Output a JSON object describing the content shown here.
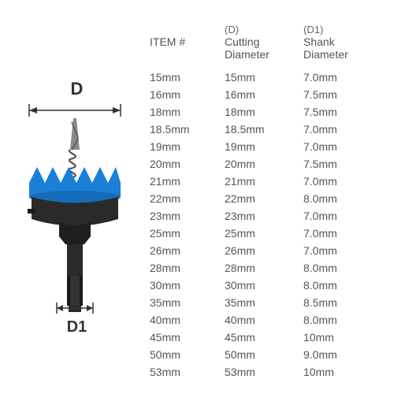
{
  "diagram": {
    "label_d": "D",
    "label_d1": "D1",
    "body_color": "#2a2a2a",
    "teeth_color": "#1b7fd6",
    "dim_line_color": "#333333"
  },
  "table": {
    "headers": {
      "item_label": "ITEM #",
      "cutting_super": "(D)",
      "cutting_label": "Cutting",
      "cutting_sub": "Diameter",
      "shank_super": "(D1)",
      "shank_label": "Shank",
      "shank_sub": "Diameter"
    },
    "columns": [
      "item",
      "cutting",
      "shank"
    ],
    "rows": [
      {
        "item": "15mm",
        "cutting": "15mm",
        "shank": "7.0mm"
      },
      {
        "item": "16mm",
        "cutting": "16mm",
        "shank": "7.5mm"
      },
      {
        "item": "18mm",
        "cutting": "18mm",
        "shank": "7.5mm"
      },
      {
        "item": "18.5mm",
        "cutting": "18.5mm",
        "shank": "7.0mm"
      },
      {
        "item": "19mm",
        "cutting": "19mm",
        "shank": "7.0mm"
      },
      {
        "item": "20mm",
        "cutting": "20mm",
        "shank": "7.5mm"
      },
      {
        "item": "21mm",
        "cutting": "21mm",
        "shank": "7.0mm"
      },
      {
        "item": "22mm",
        "cutting": "22mm",
        "shank": "8.0mm"
      },
      {
        "item": "23mm",
        "cutting": "23mm",
        "shank": "7.0mm"
      },
      {
        "item": "25mm",
        "cutting": "25mm",
        "shank": "7.0mm"
      },
      {
        "item": "26mm",
        "cutting": "26mm",
        "shank": "7.0mm"
      },
      {
        "item": "28mm",
        "cutting": "28mm",
        "shank": "8.0mm"
      },
      {
        "item": "30mm",
        "cutting": "30mm",
        "shank": "8.0mm"
      },
      {
        "item": "35mm",
        "cutting": "35mm",
        "shank": "8.5mm"
      },
      {
        "item": "40mm",
        "cutting": "40mm",
        "shank": "8.0mm"
      },
      {
        "item": "45mm",
        "cutting": "45mm",
        "shank": "10mm"
      },
      {
        "item": "50mm",
        "cutting": "50mm",
        "shank": "9.0mm"
      },
      {
        "item": "53mm",
        "cutting": "53mm",
        "shank": "10mm"
      }
    ],
    "text_color": "#555555",
    "font_size": 14
  }
}
